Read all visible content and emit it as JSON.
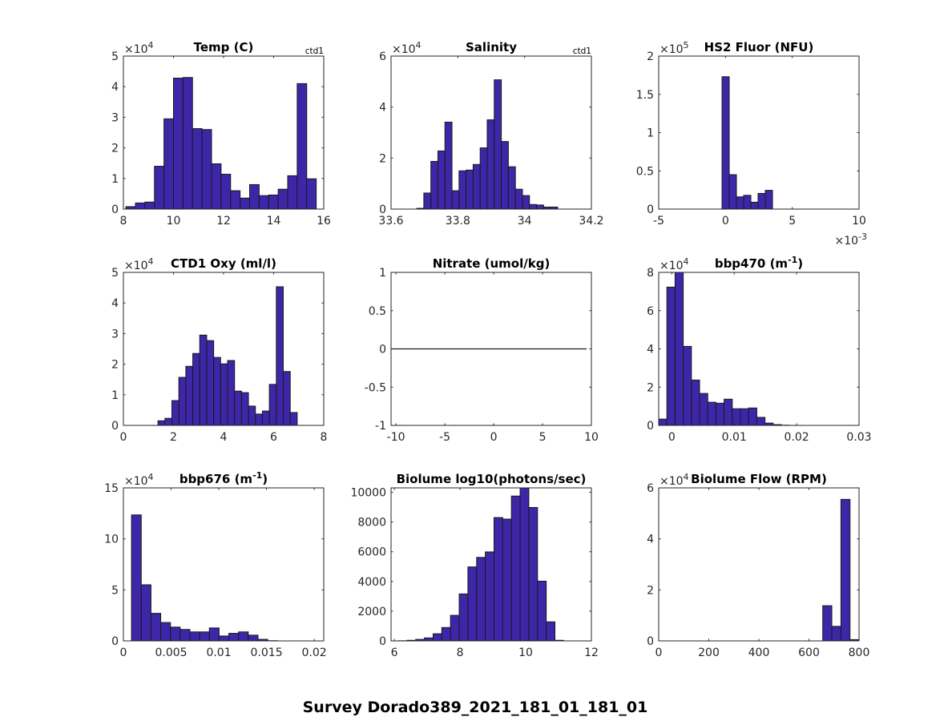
{
  "figure": {
    "suptitle": "Survey Dorado389_2021_181_01_181_01",
    "bar_color": "#3D26A8",
    "edge_color": "#1A1A1A"
  },
  "chart_data": [
    {
      "type": "bar",
      "title": "Temp (C)",
      "corner_label": "ctd1",
      "xlim": [
        8,
        16
      ],
      "ylim": [
        0,
        50000
      ],
      "xticks": [
        8,
        10,
        12,
        14,
        16
      ],
      "xtick_labels": [
        "8",
        "10",
        "12",
        "14",
        "16"
      ],
      "yticks": [
        0,
        10000,
        20000,
        30000,
        40000,
        50000
      ],
      "ytick_labels": [
        "0",
        "1",
        "2",
        "3",
        "4",
        "5"
      ],
      "y_multiplier": "×10",
      "y_multiplier_exp": "4",
      "bin_start": 8.1,
      "bin_width": 0.38,
      "values": [
        800,
        2000,
        2300,
        14000,
        29500,
        42800,
        43000,
        26300,
        26000,
        14800,
        11400,
        6000,
        3600,
        8000,
        4400,
        4600,
        6500,
        10900,
        41000,
        9900
      ]
    },
    {
      "type": "bar",
      "title": "Salinity",
      "corner_label": "ctd1",
      "xlim": [
        33.6,
        34.2
      ],
      "ylim": [
        0,
        60000
      ],
      "xticks": [
        33.6,
        33.8,
        34,
        34.2
      ],
      "xtick_labels": [
        "33.6",
        "33.8",
        "34",
        "34.2"
      ],
      "yticks": [
        0,
        20000,
        40000,
        60000
      ],
      "ytick_labels": [
        "0",
        "2",
        "4",
        "6"
      ],
      "y_multiplier": "×10",
      "y_multiplier_exp": "4",
      "bin_start": 33.677,
      "bin_width": 0.0211,
      "values": [
        300,
        6300,
        18700,
        22800,
        34100,
        7200,
        15000,
        15300,
        17500,
        24000,
        35000,
        50700,
        26500,
        16600,
        7800,
        5300,
        1800,
        1600,
        800,
        800
      ]
    },
    {
      "type": "bar",
      "title": "HS2 Fluor (NFU)",
      "corner_label": "",
      "xlim": [
        -0.005,
        0.01
      ],
      "ylim": [
        0,
        200000
      ],
      "xticks": [
        -0.005,
        0,
        0.005,
        0.01
      ],
      "xtick_labels": [
        "-5",
        "0",
        "5",
        "10"
      ],
      "x_multiplier": "×10",
      "x_multiplier_exp": "-3",
      "yticks": [
        0,
        50000,
        100000,
        150000,
        200000
      ],
      "ytick_labels": [
        "0",
        "0.5",
        "1",
        "1.5",
        "2"
      ],
      "y_multiplier": "×10",
      "y_multiplier_exp": "5",
      "bin_start": -0.00026,
      "bin_width": 0.00054,
      "values": [
        173000,
        45000,
        16000,
        18000,
        9000,
        20500,
        24500
      ]
    },
    {
      "type": "bar",
      "title": "CTD1 Oxy (ml/l)",
      "corner_label": "",
      "xlim": [
        0,
        8
      ],
      "ylim": [
        0,
        50000
      ],
      "xticks": [
        0,
        2,
        4,
        6,
        8
      ],
      "xtick_labels": [
        "0",
        "2",
        "4",
        "6",
        "8"
      ],
      "yticks": [
        0,
        10000,
        20000,
        30000,
        40000,
        50000
      ],
      "ytick_labels": [
        "0",
        "1",
        "2",
        "3",
        "4",
        "5"
      ],
      "y_multiplier": "×10",
      "y_multiplier_exp": "4",
      "bin_start": 1.38,
      "bin_width": 0.278,
      "values": [
        1500,
        2300,
        8100,
        15700,
        19300,
        23500,
        29500,
        27700,
        22200,
        20100,
        21200,
        11200,
        10700,
        6300,
        3700,
        4700,
        13400,
        45300,
        17600,
        4200
      ]
    },
    {
      "type": "line",
      "title": "Nitrate (umol/kg)",
      "corner_label": "",
      "xlim": [
        -10.5,
        10
      ],
      "ylim": [
        -1,
        1
      ],
      "xticks": [
        -10,
        -5,
        0,
        5,
        10
      ],
      "xtick_labels": [
        "-10",
        "-5",
        "0",
        "5",
        "10"
      ],
      "yticks": [
        -1,
        -0.5,
        0,
        0.5,
        1
      ],
      "ytick_labels": [
        "-1",
        "-0.5",
        "0",
        "0.5",
        "1"
      ],
      "x": [
        -10.5,
        9.5
      ],
      "y": [
        0,
        0
      ]
    },
    {
      "type": "bar",
      "title": "bbp470 (m",
      "title_sup": "-1",
      "title_end": ")",
      "corner_label": "",
      "xlim": [
        -0.0021,
        0.03
      ],
      "ylim": [
        0,
        80000
      ],
      "xticks": [
        0,
        0.01,
        0.02,
        0.03
      ],
      "xtick_labels": [
        "0",
        "0.01",
        "0.02",
        "0.03"
      ],
      "yticks": [
        0,
        20000,
        40000,
        60000,
        80000
      ],
      "ytick_labels": [
        "0",
        "2",
        "4",
        "6",
        "8"
      ],
      "y_multiplier": "×10",
      "y_multiplier_exp": "4",
      "bin_start": -0.0021,
      "bin_width": 0.00131,
      "values": [
        3300,
        72300,
        80000,
        41300,
        23700,
        16700,
        12100,
        11600,
        13700,
        8700,
        8700,
        9100,
        4200,
        1200,
        400,
        100
      ]
    },
    {
      "type": "bar",
      "title": "bbp676 (m",
      "title_sup": "-1",
      "title_end": ")",
      "corner_label": "",
      "xlim": [
        0,
        0.021
      ],
      "ylim": [
        0,
        150000
      ],
      "xticks": [
        0,
        0.005,
        0.01,
        0.015,
        0.02
      ],
      "xtick_labels": [
        "0",
        "0.005",
        "0.01",
        "0.015",
        "0.02"
      ],
      "yticks": [
        0,
        50000,
        100000,
        150000
      ],
      "ytick_labels": [
        "0",
        "5",
        "10",
        "15"
      ],
      "y_multiplier": "×10",
      "y_multiplier_exp": "4",
      "bin_start": 0.00085,
      "bin_width": 0.00102,
      "values": [
        123500,
        55000,
        27000,
        18000,
        13500,
        11200,
        8800,
        8800,
        12700,
        4800,
        7400,
        8800,
        5600,
        1500,
        200
      ]
    },
    {
      "type": "bar",
      "title": "Biolume log10(photons/sec)",
      "corner_label": "",
      "xlim": [
        5.9,
        12
      ],
      "ylim": [
        0,
        10300
      ],
      "xticks": [
        6,
        8,
        10,
        12
      ],
      "xtick_labels": [
        "6",
        "8",
        "10",
        "12"
      ],
      "yticks": [
        0,
        2000,
        4000,
        6000,
        8000,
        10000
      ],
      "ytick_labels": [
        "0",
        "2000",
        "4000",
        "6000",
        "8000",
        "10000"
      ],
      "bin_start": 6.12,
      "bin_width": 0.265,
      "values": [
        10,
        40,
        100,
        200,
        480,
        900,
        1720,
        3160,
        4980,
        5620,
        5990,
        8300,
        8200,
        9750,
        10300,
        8980,
        4020,
        1280,
        40
      ]
    },
    {
      "type": "bar",
      "title": "Biolume Flow (RPM)",
      "corner_label": "",
      "xlim": [
        0,
        800
      ],
      "ylim": [
        0,
        60000
      ],
      "xticks": [
        0,
        200,
        400,
        600,
        800
      ],
      "xtick_labels": [
        "0",
        "200",
        "400",
        "600",
        "800"
      ],
      "yticks": [
        0,
        20000,
        40000,
        60000
      ],
      "ytick_labels": [
        "0",
        "2",
        "4",
        "6"
      ],
      "y_multiplier": "×10",
      "y_multiplier_exp": "4",
      "bin_start": 655,
      "bin_width": 36.3,
      "values": [
        13800,
        5700,
        55500,
        500
      ]
    }
  ]
}
